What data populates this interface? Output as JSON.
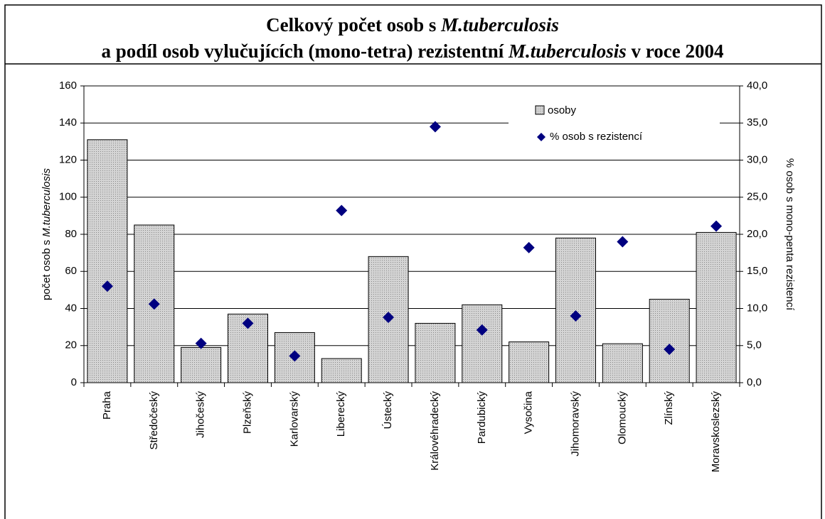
{
  "chart_data": {
    "type": "bar",
    "title_lines": [
      [
        "Celkový počet osob s ",
        "M.tuberculosis"
      ],
      [
        "a podíl osob vylučujících (mono-tetra) rezistentní ",
        "M.tuberculosis",
        " v roce 2004"
      ]
    ],
    "y_label": [
      "počet osob s ",
      "M.tuberculosis"
    ],
    "y2_label": "% osob s mono-penta rezistencí",
    "categories": [
      "Praha",
      "Středočeský",
      "Jihočeský",
      "Plzeňský",
      "Karlovarský",
      "Liberecký",
      "Ústecký",
      "Královéhradecký",
      "Pardubický",
      "Vysočina",
      "Jihomoravský",
      "Olomoucký",
      "Zlínský",
      "Moravskoslezský"
    ],
    "series": [
      {
        "name": "osoby",
        "color": "#d4d4d4",
        "values": [
          131,
          85,
          19,
          37,
          27,
          13,
          68,
          32,
          42,
          22,
          78,
          21,
          45,
          81
        ]
      },
      {
        "name": "% osob s rezistencí",
        "color": "#000080",
        "axis": "y2",
        "values": [
          13.0,
          10.6,
          5.3,
          8.0,
          3.6,
          23.2,
          8.8,
          34.5,
          7.1,
          18.2,
          9.0,
          19.0,
          4.5,
          21.1
        ]
      }
    ],
    "ylim": [
      0,
      160
    ],
    "yticks": [
      0,
      20,
      40,
      60,
      80,
      100,
      120,
      140,
      160
    ],
    "y2lim": [
      0,
      40
    ],
    "y2ticks": [
      {
        "value": 0,
        "label": "0,0"
      },
      {
        "value": 5,
        "label": "5,0"
      },
      {
        "value": 10,
        "label": "10,0"
      },
      {
        "value": 15,
        "label": "15,0"
      },
      {
        "value": 20,
        "label": "20,0"
      },
      {
        "value": 25,
        "label": "25,0"
      },
      {
        "value": 30,
        "label": "30,0"
      },
      {
        "value": 35,
        "label": "35,0"
      },
      {
        "value": 40,
        "label": "40,0"
      }
    ],
    "grid": true
  }
}
